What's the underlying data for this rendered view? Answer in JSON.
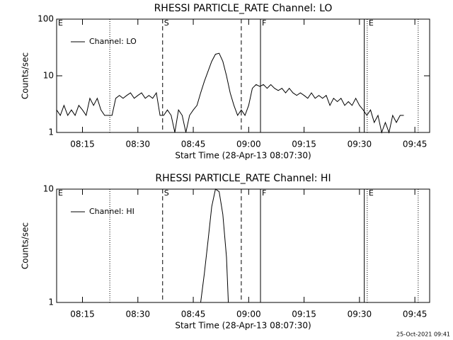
{
  "chart_data": [
    {
      "type": "line",
      "title": "RHESSI PARTICLE_RATE Channel: LO",
      "xlabel": "Start Time (28-Apr-13 08:07:30)",
      "ylabel": "Counts/sec",
      "log_y": true,
      "ylim": [
        1,
        100
      ],
      "yticks": [
        1,
        10,
        100
      ],
      "xlim": [
        488,
        589
      ],
      "xticks": [
        {
          "value": 495,
          "label": "08:15"
        },
        {
          "value": 510,
          "label": "08:30"
        },
        {
          "value": 525,
          "label": "08:45"
        },
        {
          "value": 540,
          "label": "09:00"
        },
        {
          "value": 555,
          "label": "09:15"
        },
        {
          "value": 570,
          "label": "09:30"
        },
        {
          "value": 585,
          "label": "09:45"
        }
      ],
      "legend": "upper left",
      "markers": [
        {
          "x": 488,
          "style": "dotted",
          "label": "E"
        },
        {
          "x": 502.4,
          "style": "dotted"
        },
        {
          "x": 516.7,
          "style": "dashed",
          "label": "S"
        },
        {
          "x": 538,
          "style": "dashed"
        },
        {
          "x": 543.2,
          "style": "solid",
          "label": "F"
        },
        {
          "x": 571.3,
          "style": "solid"
        },
        {
          "x": 572.1,
          "style": "dotted",
          "label": "E"
        },
        {
          "x": 585.9,
          "style": "dotted"
        }
      ],
      "series": [
        {
          "name": "Channel: LO",
          "color": "#000000",
          "x": [
            488,
            489,
            490,
            491,
            492,
            493,
            494,
            495,
            496,
            497,
            498,
            499,
            500,
            501,
            502,
            503,
            504,
            505,
            506,
            507,
            508,
            509,
            510,
            511,
            512,
            513,
            514,
            515,
            516,
            517,
            518,
            519,
            520,
            521,
            522,
            523,
            524,
            525,
            526,
            527,
            528,
            529,
            530,
            531,
            532,
            533,
            534,
            535,
            536,
            537,
            538,
            539,
            540,
            541,
            542,
            543,
            544,
            545,
            546,
            547,
            548,
            549,
            550,
            551,
            552,
            553,
            554,
            555,
            556,
            557,
            558,
            559,
            560,
            561,
            562,
            563,
            564,
            565,
            566,
            567,
            568,
            569,
            570,
            571,
            572,
            573,
            574,
            575,
            576,
            577,
            578,
            579,
            580,
            581,
            582
          ],
          "values": [
            2.5,
            2,
            3,
            2,
            2.5,
            2,
            3,
            2.5,
            2,
            4,
            3,
            4,
            2.5,
            2,
            2,
            2,
            4,
            4.5,
            4,
            4.5,
            5,
            4,
            4.5,
            5,
            4,
            4.5,
            4,
            5,
            2,
            2,
            2.5,
            2,
            1,
            2.5,
            2,
            1,
            2,
            2.5,
            3,
            5,
            8,
            12,
            18,
            24,
            25,
            18,
            10,
            5,
            3,
            2,
            2.5,
            2,
            3,
            6,
            7,
            6.5,
            7,
            6,
            7,
            6,
            5.5,
            6,
            5,
            6,
            5,
            4.5,
            5,
            4.5,
            4,
            5,
            4,
            4.5,
            4,
            4.5,
            3,
            4,
            3.5,
            4,
            3,
            3.5,
            3,
            4,
            3,
            2.5,
            2,
            2.5,
            1.5,
            2,
            1,
            1.5,
            1,
            2,
            1.5,
            2,
            2
          ]
        }
      ]
    },
    {
      "type": "line",
      "title": "RHESSI PARTICLE_RATE Channel: HI",
      "xlabel": "Start Time (28-Apr-13 08:07:30)",
      "ylabel": "Counts/sec",
      "log_y": true,
      "ylim": [
        1,
        10
      ],
      "yticks": [
        1,
        10
      ],
      "xlim": [
        488,
        589
      ],
      "xticks": [
        {
          "value": 495,
          "label": "08:15"
        },
        {
          "value": 510,
          "label": "08:30"
        },
        {
          "value": 525,
          "label": "08:45"
        },
        {
          "value": 540,
          "label": "09:00"
        },
        {
          "value": 555,
          "label": "09:15"
        },
        {
          "value": 570,
          "label": "09:30"
        },
        {
          "value": 585,
          "label": "09:45"
        }
      ],
      "legend": "upper left",
      "markers": [
        {
          "x": 488,
          "style": "dotted",
          "label": "E"
        },
        {
          "x": 502.4,
          "style": "dotted"
        },
        {
          "x": 516.7,
          "style": "dashed",
          "label": "S"
        },
        {
          "x": 538,
          "style": "dashed"
        },
        {
          "x": 543.2,
          "style": "solid",
          "label": "F"
        },
        {
          "x": 571.3,
          "style": "solid"
        },
        {
          "x": 572.1,
          "style": "dotted",
          "label": "E"
        },
        {
          "x": 585.9,
          "style": "dotted"
        }
      ],
      "series": [
        {
          "name": "Channel: HI",
          "color": "#000000",
          "x": [
            527,
            528,
            529,
            530,
            531,
            532,
            533,
            534,
            534.5
          ],
          "values": [
            1,
            1.8,
            3.5,
            7,
            10,
            9.5,
            6,
            2.5,
            1
          ]
        }
      ]
    }
  ],
  "footer": "25-Oct-2021 09:41"
}
